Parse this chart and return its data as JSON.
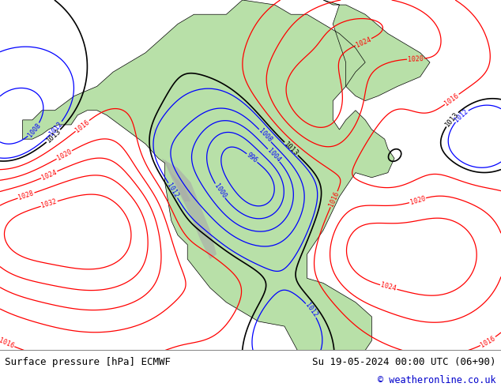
{
  "title_left": "Surface pressure [hPa] ECMWF",
  "title_right": "Su 19-05-2024 00:00 UTC (06+90)",
  "copyright": "© weatheronline.co.uk",
  "bg_color": "#d4d4d4",
  "land_color": "#b8e0a8",
  "mountain_color": "#a8a8a8",
  "bottom_bar_color": "#e8e8e8",
  "text_color_left": "#000000",
  "text_color_right": "#000000",
  "copyright_color": "#0000cc",
  "font_size_bottom": 9,
  "fig_width": 6.34,
  "fig_height": 4.9
}
